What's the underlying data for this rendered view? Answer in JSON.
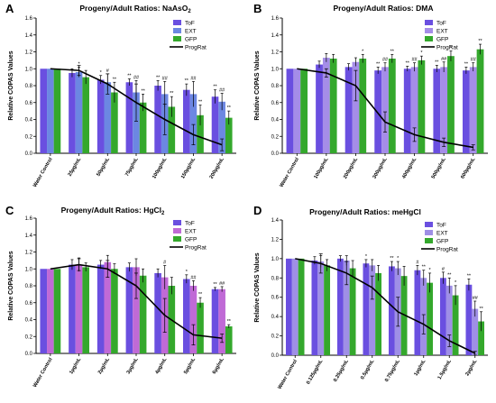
{
  "chart_data": [
    {
      "type": "bar",
      "panel": "A",
      "title": "Progeny/Adult Ratios: NaAsO",
      "title_sub": "2",
      "title_sub_after": "",
      "ylabel": "Relative COPAS Values",
      "ylim": [
        0,
        1.6
      ],
      "yticks": [
        "0.0",
        "0.2",
        "0.4",
        "0.6",
        "0.8",
        "1.0",
        "1.2",
        "1.4",
        "1.6"
      ],
      "categories": [
        "Water Control",
        "25µg/mL",
        "50µg/mL",
        "75µg/mL",
        "100µg/mL",
        "150µg/mL",
        "200µg/mL"
      ],
      "series": [
        {
          "name": "ToF",
          "color": "#6a4fe0",
          "values": [
            1.0,
            0.95,
            0.87,
            0.84,
            0.8,
            0.75,
            0.67
          ],
          "errors": [
            0.0,
            0.05,
            0.05,
            0.04,
            0.06,
            0.07,
            0.08
          ]
        },
        {
          "name": "EXT",
          "color": "#6c87e2",
          "values": [
            1.0,
            0.96,
            0.84,
            0.72,
            0.7,
            0.7,
            0.61
          ],
          "errors": [
            0.0,
            0.06,
            0.1,
            0.14,
            0.15,
            0.15,
            0.1
          ]
        },
        {
          "name": "GFP",
          "color": "#34a82c",
          "values": [
            1.0,
            0.9,
            0.72,
            0.6,
            0.55,
            0.45,
            0.42
          ],
          "errors": [
            0.0,
            0.08,
            0.12,
            0.1,
            0.12,
            0.12,
            0.08
          ]
        }
      ],
      "line": {
        "name": "ProgRat",
        "values": [
          1.0,
          0.98,
          0.82,
          0.6,
          0.4,
          0.22,
          0.1
        ],
        "errors": [
          0.0,
          0.06,
          0.12,
          0.22,
          0.18,
          0.12,
          0.07
        ]
      },
      "annotations": [
        {
          "cat": 1,
          "s": 1,
          "text": "*"
        },
        {
          "cat": 2,
          "s": 0,
          "text": "*"
        },
        {
          "cat": 2,
          "s": 1,
          "text": "#"
        },
        {
          "cat": 2,
          "s": 2,
          "text": "**"
        },
        {
          "cat": 3,
          "s": 0,
          "text": "**"
        },
        {
          "cat": 3,
          "s": 1,
          "text": "##"
        },
        {
          "cat": 3,
          "s": 2,
          "text": "**"
        },
        {
          "cat": 4,
          "s": 0,
          "text": "**"
        },
        {
          "cat": 4,
          "s": 1,
          "text": "##"
        },
        {
          "cat": 4,
          "s": 2,
          "text": "**"
        },
        {
          "cat": 5,
          "s": 0,
          "text": "**"
        },
        {
          "cat": 5,
          "s": 1,
          "text": "##"
        },
        {
          "cat": 5,
          "s": 2,
          "text": "**"
        },
        {
          "cat": 6,
          "s": 0,
          "text": "**"
        },
        {
          "cat": 6,
          "s": 1,
          "text": "##"
        },
        {
          "cat": 6,
          "s": 2,
          "text": "**"
        }
      ],
      "legend": "top-right",
      "grid": false
    },
    {
      "type": "bar",
      "panel": "B",
      "title": "Progeny/Adult Ratios: DMA",
      "title_sub": "",
      "title_sub_after": "",
      "ylabel": "Relative COPAS Values",
      "ylim": [
        0,
        1.6
      ],
      "yticks": [
        "0.0",
        "0.2",
        "0.4",
        "0.6",
        "0.8",
        "1.0",
        "1.2",
        "1.4",
        "1.6"
      ],
      "categories": [
        "Water Control",
        "100µg/mL",
        "200µg/mL",
        "300µg/mL",
        "400µg/mL",
        "500µg/mL",
        "600µg/mL"
      ],
      "series": [
        {
          "name": "ToF",
          "color": "#6a4fe0",
          "values": [
            1.0,
            1.05,
            1.02,
            0.98,
            1.0,
            1.0,
            0.98
          ],
          "errors": [
            0.0,
            0.04,
            0.04,
            0.04,
            0.03,
            0.04,
            0.04
          ]
        },
        {
          "name": "EXT",
          "color": "#a58de8",
          "values": [
            1.0,
            1.13,
            1.08,
            1.02,
            1.02,
            1.02,
            1.02
          ],
          "errors": [
            0.0,
            0.05,
            0.05,
            0.05,
            0.05,
            0.06,
            0.05
          ]
        },
        {
          "name": "GFP",
          "color": "#34a82c",
          "values": [
            1.0,
            1.12,
            1.12,
            1.12,
            1.1,
            1.15,
            1.23
          ],
          "errors": [
            0.0,
            0.05,
            0.05,
            0.05,
            0.05,
            0.06,
            0.06
          ]
        }
      ],
      "line": {
        "name": "ProgRat",
        "values": [
          1.0,
          0.95,
          0.8,
          0.37,
          0.22,
          0.13,
          0.07
        ],
        "errors": [
          0.0,
          0.05,
          0.18,
          0.12,
          0.08,
          0.05,
          0.03
        ]
      },
      "annotations": [
        {
          "cat": 2,
          "s": 2,
          "text": "*"
        },
        {
          "cat": 3,
          "s": 0,
          "text": "**"
        },
        {
          "cat": 3,
          "s": 1,
          "text": "##"
        },
        {
          "cat": 3,
          "s": 2,
          "text": "**"
        },
        {
          "cat": 4,
          "s": 0,
          "text": "**"
        },
        {
          "cat": 4,
          "s": 1,
          "text": "##"
        },
        {
          "cat": 4,
          "s": 2,
          "text": "*"
        },
        {
          "cat": 5,
          "s": 0,
          "text": "**"
        },
        {
          "cat": 5,
          "s": 1,
          "text": "##"
        },
        {
          "cat": 5,
          "s": 2,
          "text": "*"
        },
        {
          "cat": 6,
          "s": 0,
          "text": "**"
        },
        {
          "cat": 6,
          "s": 1,
          "text": "##"
        },
        {
          "cat": 6,
          "s": 2,
          "text": "**"
        }
      ],
      "legend": "top-right",
      "grid": false
    },
    {
      "type": "bar",
      "panel": "C",
      "title": "Progeny/Adult Ratios: HgCl",
      "title_sub": "2",
      "title_sub_after": "",
      "ylabel": "Relative COPAS Values",
      "ylim": [
        0,
        1.6
      ],
      "yticks": [
        "0.0",
        "0.2",
        "0.4",
        "0.6",
        "0.8",
        "1.0",
        "1.2",
        "1.4",
        "1.6"
      ],
      "categories": [
        "Water Control",
        "1µg/mL",
        "2µg/mL",
        "3µg/mL",
        "4µg/mL",
        "5µg/mL",
        "6µg/mL"
      ],
      "series": [
        {
          "name": "ToF",
          "color": "#6a4fe0",
          "values": [
            1.0,
            1.05,
            1.05,
            1.02,
            0.95,
            0.88,
            0.76
          ],
          "errors": [
            0.0,
            0.06,
            0.05,
            0.05,
            0.05,
            0.05,
            0.02
          ]
        },
        {
          "name": "EXT",
          "color": "#c06ad6",
          "values": [
            1.0,
            1.05,
            1.08,
            1.02,
            0.9,
            0.8,
            0.76
          ],
          "errors": [
            0.0,
            0.08,
            0.08,
            0.1,
            0.14,
            0.06,
            0.03
          ]
        },
        {
          "name": "GFP",
          "color": "#34a82c",
          "values": [
            1.0,
            1.02,
            1.0,
            0.92,
            0.8,
            0.6,
            0.32
          ],
          "errors": [
            0.0,
            0.05,
            0.06,
            0.08,
            0.1,
            0.06,
            0.02
          ]
        }
      ],
      "line": {
        "name": "ProgRat",
        "values": [
          1.0,
          1.05,
          1.0,
          0.8,
          0.45,
          0.22,
          0.18
        ],
        "errors": [
          0.0,
          0.07,
          0.1,
          0.15,
          0.2,
          0.12,
          0.05
        ]
      },
      "annotations": [
        {
          "cat": 4,
          "s": 1,
          "text": "#"
        },
        {
          "cat": 5,
          "s": 0,
          "text": "*"
        },
        {
          "cat": 5,
          "s": 1,
          "text": "##"
        },
        {
          "cat": 5,
          "s": 2,
          "text": "**"
        },
        {
          "cat": 6,
          "s": 0,
          "text": "**"
        },
        {
          "cat": 6,
          "s": 1,
          "text": "##"
        },
        {
          "cat": 6,
          "s": 2,
          "text": "**"
        }
      ],
      "legend": "top-right",
      "grid": false
    },
    {
      "type": "bar",
      "panel": "D",
      "title": "Progeny/Adult Ratios: meHgCl",
      "title_sub": "",
      "title_sub_after": "",
      "ylabel": "Relative COPAS Values",
      "ylim": [
        0,
        1.4
      ],
      "yticks": [
        "0.0",
        "0.2",
        "0.4",
        "0.6",
        "0.8",
        "1.0",
        "1.2",
        "1.4"
      ],
      "categories": [
        "Water Control",
        "0.125µg/mL",
        "0.25µg/mL",
        "0.5µg/mL",
        "0.75µg/mL",
        "1µg/mL",
        "1.5µg/mL",
        "2µg/mL"
      ],
      "series": [
        {
          "name": "ToF",
          "color": "#6a4fe0",
          "values": [
            1.0,
            0.98,
            1.0,
            0.95,
            0.92,
            0.88,
            0.8,
            0.73
          ],
          "errors": [
            0.0,
            0.04,
            0.03,
            0.04,
            0.05,
            0.05,
            0.06,
            0.06
          ]
        },
        {
          "name": "EXT",
          "color": "#9f8fe6",
          "values": [
            1.0,
            0.97,
            0.98,
            0.93,
            0.9,
            0.8,
            0.72,
            0.48
          ],
          "errors": [
            0.0,
            0.06,
            0.05,
            0.06,
            0.07,
            0.08,
            0.08,
            0.08
          ]
        },
        {
          "name": "GFP",
          "color": "#34a82c",
          "values": [
            1.0,
            0.93,
            0.9,
            0.85,
            0.82,
            0.75,
            0.62,
            0.35
          ],
          "errors": [
            0.0,
            0.06,
            0.08,
            0.08,
            0.1,
            0.1,
            0.1,
            0.1
          ]
        }
      ],
      "line": {
        "name": "ProgRat",
        "values": [
          1.0,
          0.95,
          0.85,
          0.7,
          0.45,
          0.32,
          0.15,
          0.02
        ],
        "errors": [
          0.0,
          0.1,
          0.12,
          0.12,
          0.15,
          0.1,
          0.06,
          0.02
        ]
      },
      "annotations": [
        {
          "cat": 3,
          "s": 0,
          "text": "*"
        },
        {
          "cat": 4,
          "s": 0,
          "text": "**"
        },
        {
          "cat": 4,
          "s": 1,
          "text": "*"
        },
        {
          "cat": 5,
          "s": 0,
          "text": "#"
        },
        {
          "cat": 5,
          "s": 1,
          "text": "**"
        },
        {
          "cat": 5,
          "s": 2,
          "text": "*"
        },
        {
          "cat": 6,
          "s": 0,
          "text": "#"
        },
        {
          "cat": 6,
          "s": 1,
          "text": "**"
        },
        {
          "cat": 6,
          "s": 2,
          "text": "*"
        },
        {
          "cat": 7,
          "s": 0,
          "text": "**"
        },
        {
          "cat": 7,
          "s": 1,
          "text": "##"
        },
        {
          "cat": 7,
          "s": 2,
          "text": "**"
        }
      ],
      "legend": "top-right",
      "grid": false
    }
  ]
}
